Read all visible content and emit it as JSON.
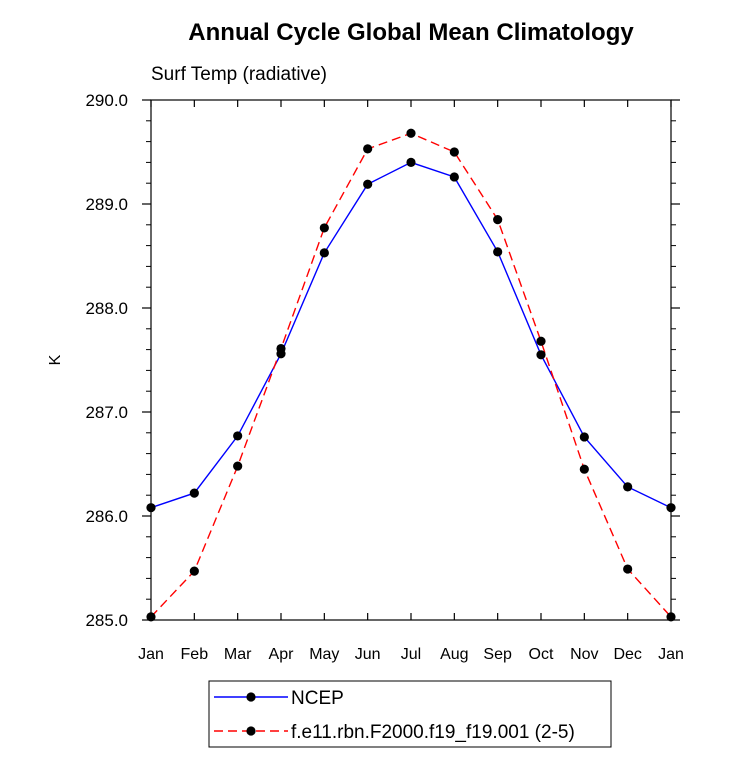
{
  "chart_data": {
    "type": "line",
    "title": "Annual Cycle Global Mean Climatology",
    "subtitle": "Surf Temp (radiative)",
    "xlabel": "",
    "ylabel": "K",
    "categories": [
      "Jan",
      "Feb",
      "Mar",
      "Apr",
      "May",
      "Jun",
      "Jul",
      "Aug",
      "Sep",
      "Oct",
      "Nov",
      "Dec",
      "Jan"
    ],
    "ylim": [
      285.0,
      290.0
    ],
    "yticks": [
      "285.0",
      "286.0",
      "287.0",
      "288.0",
      "289.0",
      "290.0"
    ],
    "grid": false,
    "legend_position": "bottom",
    "series": [
      {
        "name": "NCEP",
        "color": "#0000ff",
        "dash": "solid",
        "values": [
          286.08,
          286.22,
          286.77,
          287.56,
          288.53,
          289.19,
          289.4,
          289.26,
          288.54,
          287.55,
          286.76,
          286.28,
          286.08
        ]
      },
      {
        "name": "f.e11.rbn.F2000.f19_f19.001 (2-5)",
        "color": "#ff0000",
        "dash": "dashed",
        "values": [
          285.03,
          285.47,
          286.48,
          287.61,
          288.77,
          289.53,
          289.68,
          289.5,
          288.85,
          287.68,
          286.45,
          285.49,
          285.03
        ]
      }
    ]
  }
}
